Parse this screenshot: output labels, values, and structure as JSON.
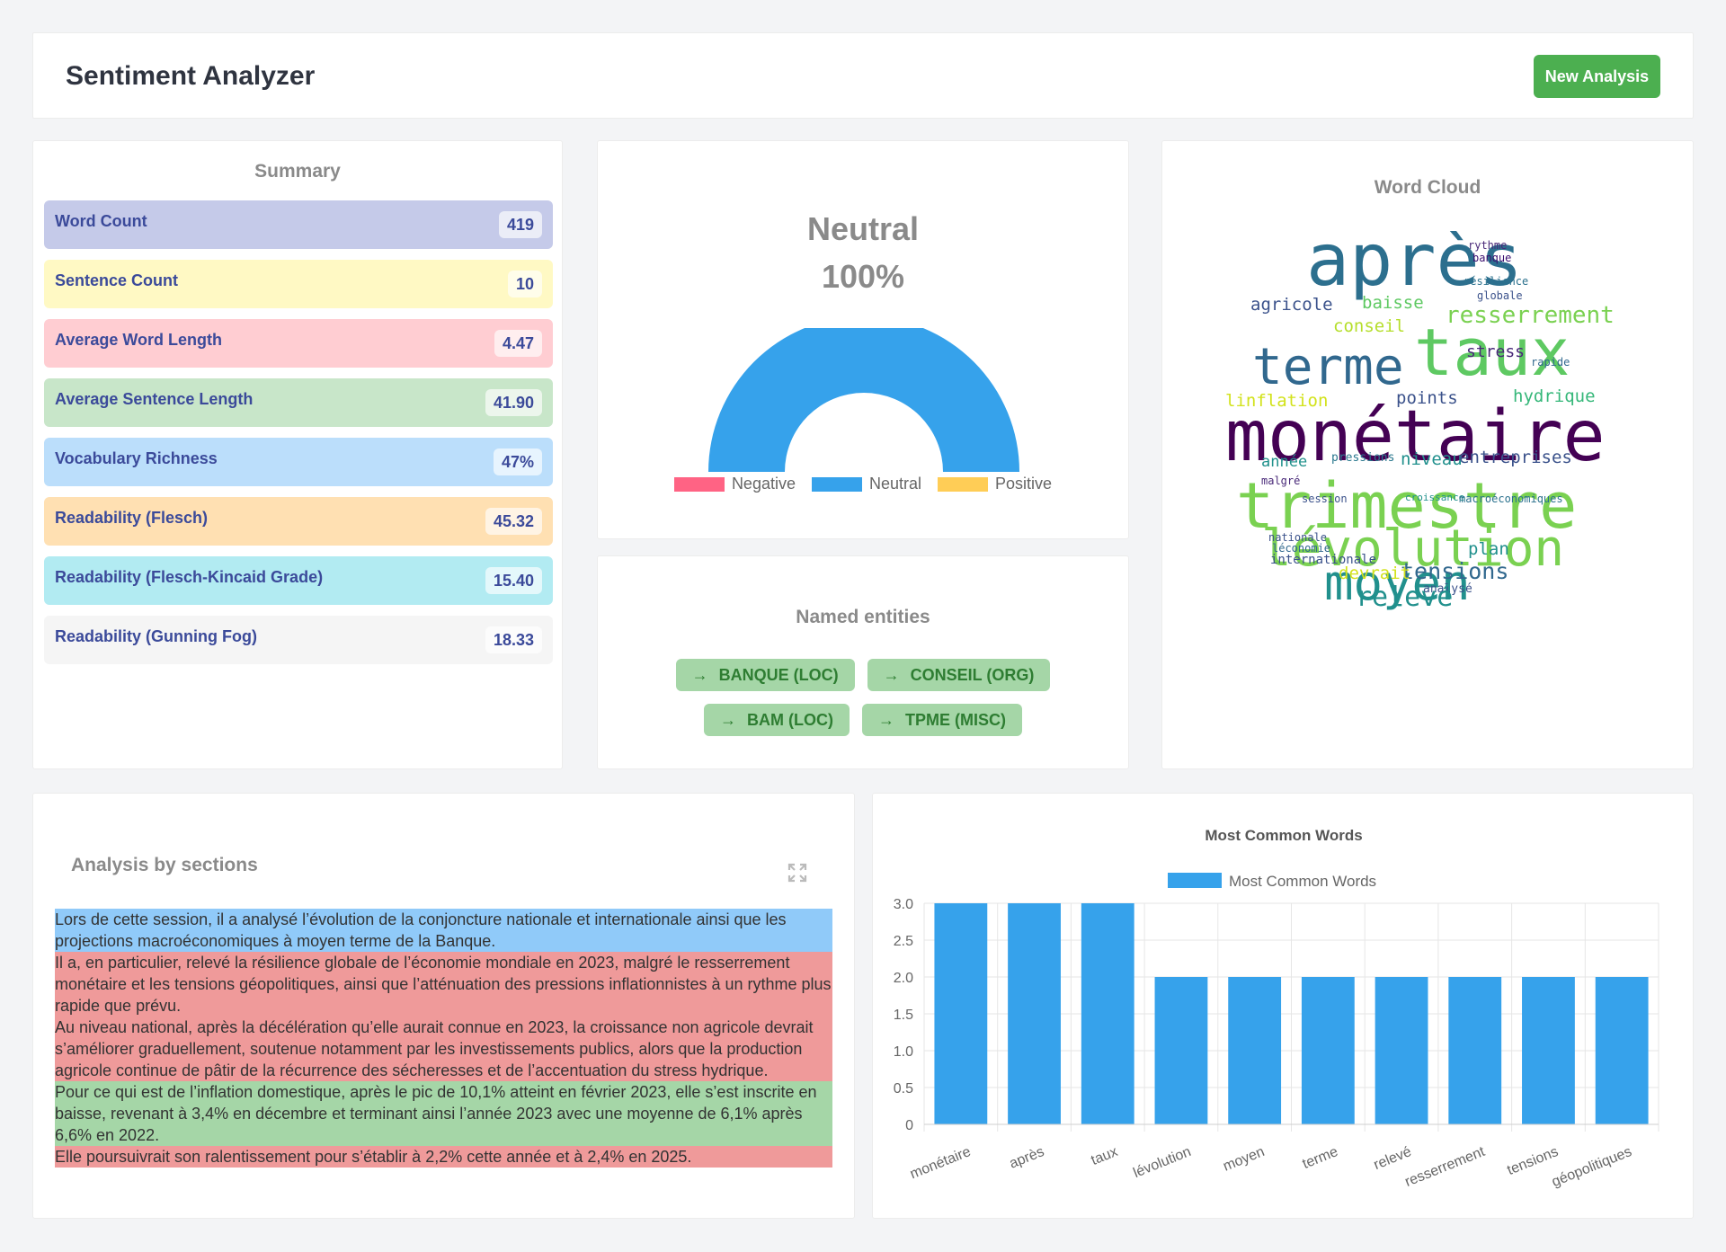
{
  "header": {
    "title": "Sentiment Analyzer",
    "new_button": "New Analysis"
  },
  "summary": {
    "title": "Summary",
    "stats": [
      {
        "label": "Word Count",
        "value": "419",
        "color": "#c5cae9"
      },
      {
        "label": "Sentence Count",
        "value": "10",
        "color": "#fff9c4"
      },
      {
        "label": "Average Word Length",
        "value": "4.47",
        "color": "#ffcdd2"
      },
      {
        "label": "Average Sentence Length",
        "value": "41.90",
        "color": "#c8e6c9"
      },
      {
        "label": "Vocabulary Richness",
        "value": "47%",
        "color": "#bbdefb"
      },
      {
        "label": "Readability (Flesch)",
        "value": "45.32",
        "color": "#ffe0b2"
      },
      {
        "label": "Readability (Flesch-Kincaid Grade)",
        "value": "15.40",
        "color": "#b2ebf2"
      },
      {
        "label": "Readability (Gunning Fog)",
        "value": "18.33",
        "color": "#f5f5f5"
      }
    ]
  },
  "sentiment": {
    "label": "Neutral",
    "percent": "100%",
    "neutral_fraction": 1.0,
    "legend": [
      {
        "label": "Negative",
        "color": "#ff6384"
      },
      {
        "label": "Neutral",
        "color": "#36a2eb"
      },
      {
        "label": "Positive",
        "color": "#ffcd56"
      }
    ]
  },
  "entities": {
    "title": "Named entities",
    "items": [
      "BANQUE (LOC)",
      "CONSEIL (ORG)",
      "BAM (LOC)",
      "TPME (MISC)"
    ]
  },
  "word_cloud": {
    "title": "Word Cloud",
    "words": [
      "national",
      "particulier",
      "géopolitiques",
      "projections",
      "après",
      "agricole",
      "baisse",
      "resserrement",
      "conseil",
      "taux",
      "terme",
      "linflation",
      "points",
      "hydrique",
      "monétaire",
      "année",
      "pressions",
      "niveau",
      "entreprises",
      "malgré",
      "trimestre",
      "session",
      "croissance",
      "macroéconomiques",
      "lévolution",
      "moyen",
      "nationale",
      "léconomie",
      "plan",
      "internationale",
      "tensions",
      "devrait",
      "analysé",
      "relevé",
      "stress",
      "rythme",
      "banque",
      "résilience",
      "globale",
      "rapide"
    ]
  },
  "sections": {
    "title": "Analysis by sections",
    "segments": [
      {
        "sentiment": "neutral",
        "text": "Lors de cette session, il a analysé l’évolution de la conjoncture nationale et internationale ainsi que les projections macroéconomiques à moyen terme de la Banque."
      },
      {
        "sentiment": "negative",
        "text": "Il a, en particulier, relevé la résilience globale de l’économie mondiale en 2023, malgré le resserrement monétaire et les tensions géopolitiques, ainsi que l’atténuation des pressions inflationnistes à un rythme plus rapide que prévu."
      },
      {
        "sentiment": "negative",
        "text": "Au niveau national, après la décélération qu’elle aurait connue en 2023, la croissance non agricole devrait s’améliorer graduellement, soutenue notamment par les investissements publics, alors que la production agricole continue de pâtir de la récurrence des sécheresses et de l’accentuation du stress hydrique."
      },
      {
        "sentiment": "positive",
        "text": "Pour ce qui est de l’inflation domestique, après le pic de 10,1% atteint en février 2023, elle s’est inscrite en baisse, revenant à 3,4% en décembre et terminant ainsi l’année 2023 avec une moyenne de 6,1% après 6,6% en 2022."
      },
      {
        "sentiment": "negative",
        "text": "Elle poursuivrait son ralentissement pour s’établir à 2,2% cette année et à 2,4% en 2025."
      }
    ]
  },
  "chart_data": {
    "type": "bar",
    "title": "Most Common Words",
    "legend": "Most Common Words",
    "categories": [
      "monétaire",
      "après",
      "taux",
      "lévolution",
      "moyen",
      "terme",
      "relevé",
      "resserrement",
      "tensions",
      "géopolitiques"
    ],
    "values": [
      3,
      3,
      3,
      2,
      2,
      2,
      2,
      2,
      2,
      2
    ],
    "ylim": [
      0,
      3
    ],
    "yticks": [
      "0",
      "0.5",
      "1.0",
      "1.5",
      "2.0",
      "2.5",
      "3.0"
    ],
    "color": "#36a2eb"
  }
}
